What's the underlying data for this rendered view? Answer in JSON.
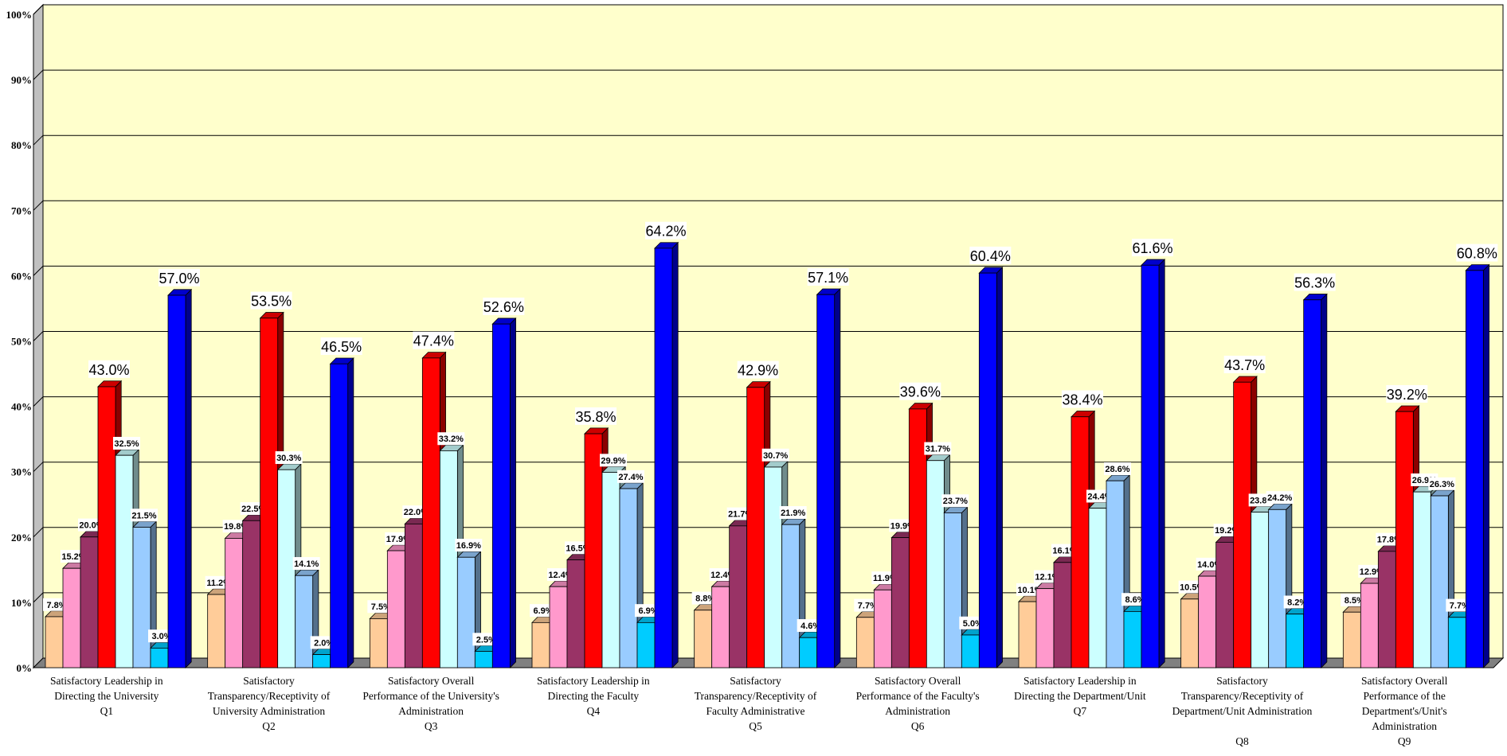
{
  "chart_data": {
    "type": "bar",
    "categories": [
      {
        "label_lines": [
          "Satisfactory Leadership in",
          "Directing the University",
          "Q1"
        ]
      },
      {
        "label_lines": [
          "Satisfactory",
          "Transparency/Receptivity of",
          "University Administration",
          "Q2"
        ]
      },
      {
        "label_lines": [
          "Satisfactory Overall",
          "Performance of the University's",
          "Administration",
          "Q3"
        ]
      },
      {
        "label_lines": [
          "Satisfactory Leadership in",
          "Directing the Faculty",
          "Q4"
        ]
      },
      {
        "label_lines": [
          "Satisfactory",
          "Transparency/Receptivity of",
          "Faculty Administrative",
          "Q5"
        ]
      },
      {
        "label_lines": [
          "Satisfactory Overall",
          "Performance of the Faculty's",
          "Administration",
          "Q6"
        ]
      },
      {
        "label_lines": [
          "Satisfactory Leadership in",
          "Directing the Department/Unit",
          "Q7"
        ]
      },
      {
        "label_lines": [
          "Satisfactory",
          "Transparency/Receptivity of",
          "Department/Unit Administration",
          "",
          "Q8"
        ]
      },
      {
        "label_lines": [
          "Satisfactory Overall",
          "Performance of the",
          "Department's/Unit's",
          "Administration",
          "Q9"
        ]
      }
    ],
    "series": [
      {
        "values": [
          7.8,
          11.2,
          7.5,
          6.9,
          8.8,
          7.7,
          10.1,
          10.5,
          8.5
        ],
        "color": "#FFCC99",
        "label_style": "small"
      },
      {
        "values": [
          15.2,
          19.8,
          17.9,
          12.4,
          12.4,
          11.9,
          12.1,
          14.0,
          12.9
        ],
        "color": "#FF99CC",
        "label_style": "small"
      },
      {
        "values": [
          20.0,
          22.5,
          22.0,
          16.5,
          21.7,
          19.9,
          16.1,
          19.2,
          17.8
        ],
        "color": "#993366",
        "label_style": "small"
      },
      {
        "values": [
          43.0,
          53.5,
          47.4,
          35.8,
          42.9,
          39.6,
          38.4,
          43.7,
          39.2
        ],
        "color": "#FF0000",
        "label_style": "big"
      },
      {
        "values": [
          32.5,
          30.3,
          33.2,
          29.9,
          30.7,
          31.7,
          24.4,
          23.8,
          26.9
        ],
        "color": "#CCFFFF",
        "label_style": "small"
      },
      {
        "values": [
          21.5,
          14.1,
          16.9,
          27.4,
          21.9,
          23.7,
          28.6,
          24.2,
          26.3
        ],
        "color": "#99CCFF",
        "label_style": "small"
      },
      {
        "values": [
          3.0,
          2.0,
          2.5,
          6.9,
          4.6,
          5.0,
          8.6,
          8.2,
          7.7
        ],
        "color": "#00CCFF",
        "label_style": "small"
      },
      {
        "values": [
          57.0,
          46.5,
          52.6,
          64.2,
          57.1,
          60.4,
          61.6,
          56.3,
          60.8
        ],
        "color": "#0000FF",
        "label_style": "big"
      }
    ],
    "value_suffix": "%",
    "ylim": [
      0,
      100
    ],
    "y_ticks": [
      "0%",
      "10%",
      "20%",
      "30%",
      "40%",
      "50%",
      "60%",
      "70%",
      "80%",
      "90%",
      "100%"
    ],
    "grid": true,
    "legend": "none",
    "style": "3d-clustered-bar",
    "plot_background": "#FFFFCC"
  }
}
